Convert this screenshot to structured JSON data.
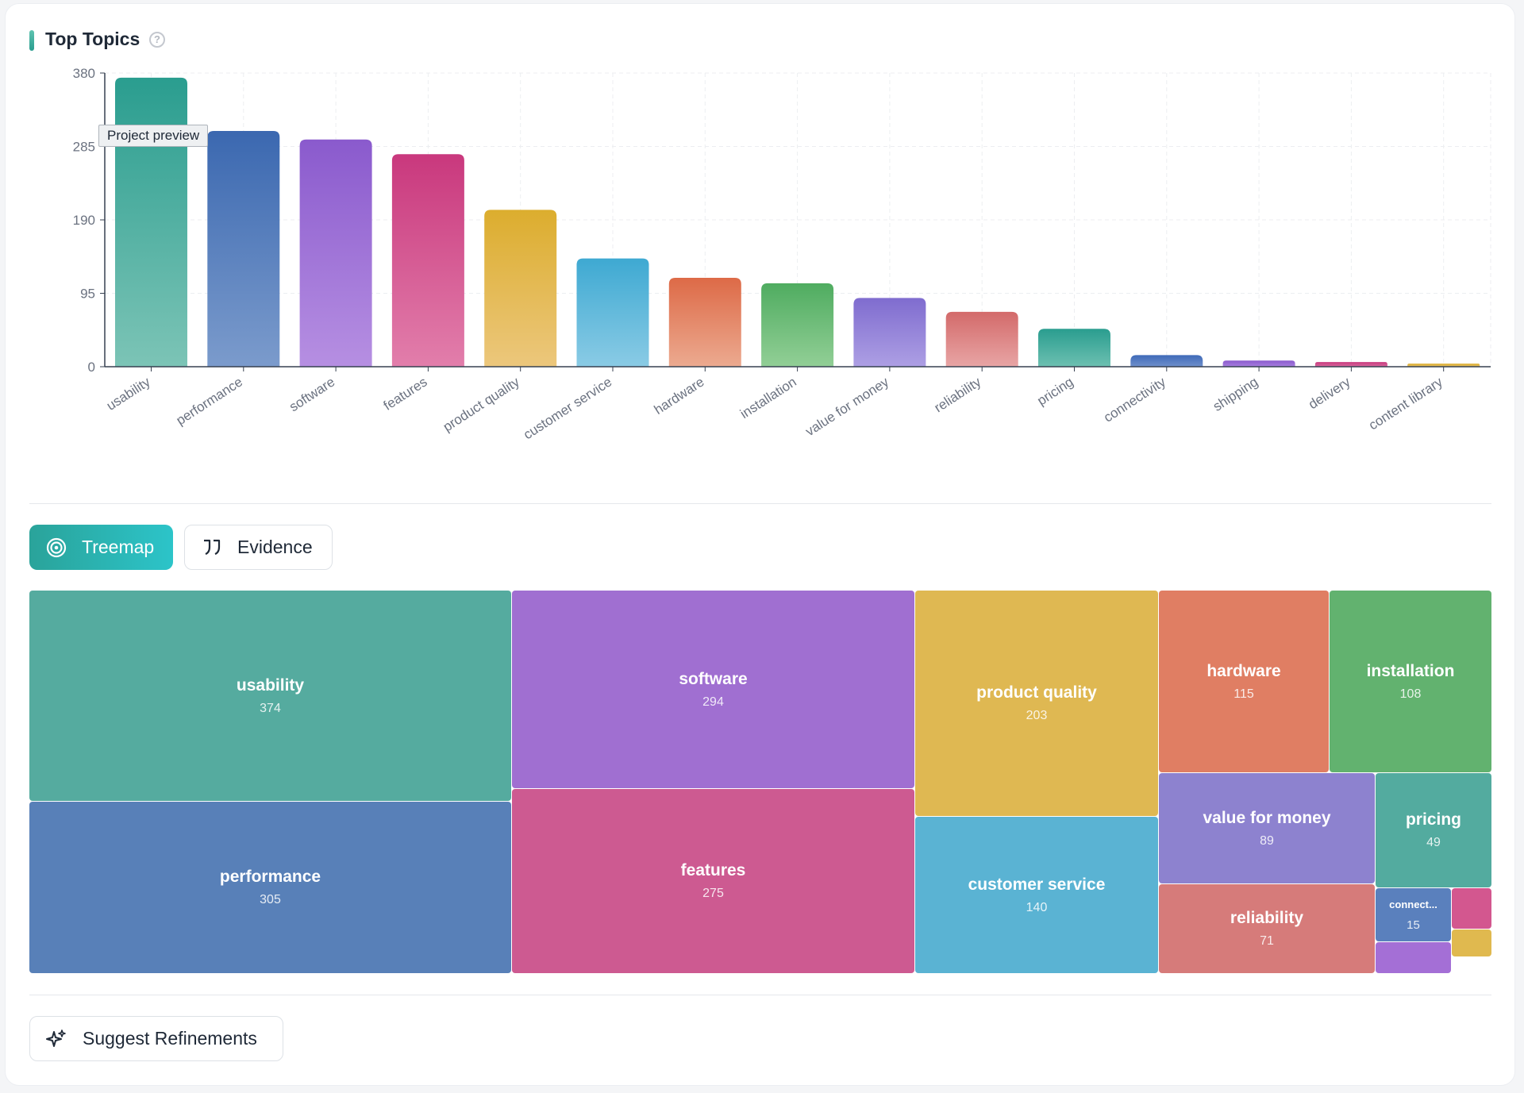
{
  "header": {
    "title": "Top Topics",
    "help_icon": "question-circle-icon",
    "help_glyph": "?"
  },
  "tooltip": "Project preview",
  "chart_data": {
    "type": "bar",
    "title": "",
    "xlabel": "",
    "ylabel": "",
    "categories": [
      "usability",
      "performance",
      "software",
      "features",
      "product quality",
      "customer service",
      "hardware",
      "installation",
      "value for money",
      "reliability",
      "pricing",
      "connectivity",
      "shipping",
      "delivery",
      "content library"
    ],
    "values": [
      374,
      305,
      294,
      275,
      203,
      140,
      115,
      108,
      89,
      71,
      49,
      15,
      8,
      6,
      4
    ],
    "colors": [
      [
        "#2a9d8f",
        "#7cc4b6"
      ],
      [
        "#3b68b0",
        "#7b9bcc"
      ],
      [
        "#8a5acd",
        "#b68fe2"
      ],
      [
        "#c9387d",
        "#e27eab"
      ],
      [
        "#dcad2e",
        "#ecc77c"
      ],
      [
        "#3ea9d2",
        "#8acbe5"
      ],
      [
        "#dd6a47",
        "#ecaa90"
      ],
      [
        "#4fac60",
        "#92cf96"
      ],
      [
        "#7f6ccf",
        "#ad9fe4"
      ],
      [
        "#d36a6a",
        "#e8a5a5"
      ],
      [
        "#2a9d8f",
        "#6dc0b1"
      ],
      [
        "#3f6ab8",
        "#6f90cc"
      ],
      [
        "#8a5acd",
        "#a87fe0"
      ],
      [
        "#c9387d",
        "#d86a9e"
      ],
      [
        "#dcad2e",
        "#e6c36a"
      ]
    ],
    "yticks": [
      0,
      95,
      190,
      285,
      380
    ],
    "ylim": [
      0,
      380
    ],
    "grid": true,
    "legend": "none"
  },
  "tabs": {
    "treemap_label": "Treemap",
    "evidence_label": "Evidence",
    "treemap_icon": "target-icon",
    "evidence_icon": "quote-icon"
  },
  "treemap": {
    "usability": {
      "label": "usability",
      "value": "374",
      "color": "#55ab9f"
    },
    "performance": {
      "label": "performance",
      "value": "305",
      "color": "#5880b8"
    },
    "software": {
      "label": "software",
      "value": "294",
      "color": "#a06fd1"
    },
    "features": {
      "label": "features",
      "value": "275",
      "color": "#cd5a91"
    },
    "product_quality": {
      "label": "product quality",
      "value": "203",
      "color": "#dfb852"
    },
    "customer_service": {
      "label": "customer service",
      "value": "140",
      "color": "#5ab3d3"
    },
    "hardware": {
      "label": "hardware",
      "value": "115",
      "color": "#e07e63"
    },
    "installation": {
      "label": "installation",
      "value": "108",
      "color": "#62b26f"
    },
    "value_for_money": {
      "label": "value for money",
      "value": "89",
      "color": "#8d82cf"
    },
    "reliability": {
      "label": "reliability",
      "value": "71",
      "color": "#d67b7a"
    },
    "pricing": {
      "label": "pricing",
      "value": "49",
      "color": "#53ab9f"
    },
    "connectivity": {
      "label": "connect...",
      "value": "15",
      "color": "#5a80bd"
    },
    "shipping": {
      "color": "#a46fd6"
    },
    "delivery": {
      "color": "#d3578f"
    },
    "content_library": {
      "color": "#e0b94f"
    }
  },
  "actions": {
    "suggest_label": "Suggest Refinements",
    "suggest_icon": "sparkle-icon"
  }
}
